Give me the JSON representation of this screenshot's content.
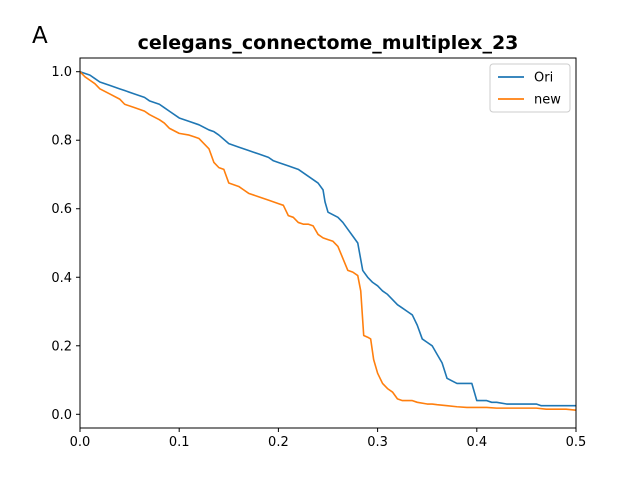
{
  "panel_label": "A",
  "chart_data": {
    "type": "line",
    "title": "celegans_connectome_multiplex_23",
    "xlabel": "",
    "ylabel": "",
    "xlim": [
      0,
      0.5
    ],
    "ylim": [
      -0.04,
      1.04
    ],
    "x_ticks": [
      0,
      0.1,
      0.2,
      0.3,
      0.4,
      0.5
    ],
    "x_tick_labels": [
      "0.0",
      "0.1",
      "0.2",
      "0.3",
      "0.4",
      "0.5"
    ],
    "y_ticks": [
      0,
      0.2,
      0.4,
      0.6,
      0.8,
      1.0
    ],
    "y_tick_labels": [
      "0.0",
      "0.2",
      "0.4",
      "0.6",
      "0.8",
      "1.0"
    ],
    "grid": false,
    "legend": {
      "placement": "top-right"
    },
    "series": [
      {
        "name": "Ori",
        "color": "#1f77b4",
        "x": [
          0,
          0.01,
          0.015,
          0.02,
          0.03,
          0.04,
          0.045,
          0.055,
          0.065,
          0.07,
          0.08,
          0.085,
          0.09,
          0.1,
          0.11,
          0.12,
          0.13,
          0.135,
          0.14,
          0.15,
          0.16,
          0.17,
          0.175,
          0.18,
          0.19,
          0.195,
          0.2,
          0.21,
          0.215,
          0.22,
          0.23,
          0.24,
          0.245,
          0.247,
          0.25,
          0.26,
          0.265,
          0.27,
          0.275,
          0.28,
          0.285,
          0.29,
          0.295,
          0.3,
          0.305,
          0.31,
          0.315,
          0.32,
          0.325,
          0.33,
          0.335,
          0.34,
          0.345,
          0.35,
          0.355,
          0.36,
          0.365,
          0.37,
          0.38,
          0.39,
          0.395,
          0.4,
          0.41,
          0.415,
          0.42,
          0.43,
          0.44,
          0.45,
          0.46,
          0.465,
          0.47,
          0.48,
          0.49,
          0.5
        ],
        "y": [
          1.0,
          0.99,
          0.98,
          0.97,
          0.96,
          0.95,
          0.945,
          0.935,
          0.925,
          0.915,
          0.905,
          0.895,
          0.885,
          0.865,
          0.855,
          0.845,
          0.83,
          0.825,
          0.815,
          0.79,
          0.78,
          0.77,
          0.765,
          0.76,
          0.75,
          0.74,
          0.735,
          0.725,
          0.72,
          0.715,
          0.695,
          0.675,
          0.655,
          0.62,
          0.59,
          0.575,
          0.56,
          0.54,
          0.52,
          0.5,
          0.42,
          0.4,
          0.385,
          0.375,
          0.36,
          0.35,
          0.335,
          0.32,
          0.31,
          0.3,
          0.29,
          0.26,
          0.22,
          0.21,
          0.2,
          0.175,
          0.15,
          0.105,
          0.09,
          0.09,
          0.09,
          0.04,
          0.04,
          0.035,
          0.035,
          0.03,
          0.03,
          0.03,
          0.03,
          0.025,
          0.025,
          0.025,
          0.025,
          0.025
        ]
      },
      {
        "name": "new",
        "color": "#ff7f0e",
        "x": [
          0,
          0.005,
          0.01,
          0.015,
          0.02,
          0.03,
          0.04,
          0.045,
          0.055,
          0.06,
          0.065,
          0.07,
          0.08,
          0.085,
          0.09,
          0.1,
          0.11,
          0.115,
          0.12,
          0.125,
          0.13,
          0.135,
          0.14,
          0.145,
          0.15,
          0.16,
          0.165,
          0.17,
          0.18,
          0.19,
          0.2,
          0.205,
          0.21,
          0.215,
          0.22,
          0.225,
          0.23,
          0.235,
          0.24,
          0.245,
          0.25,
          0.255,
          0.26,
          0.265,
          0.27,
          0.275,
          0.28,
          0.283,
          0.286,
          0.29,
          0.293,
          0.296,
          0.3,
          0.305,
          0.31,
          0.315,
          0.32,
          0.325,
          0.33,
          0.335,
          0.34,
          0.35,
          0.355,
          0.36,
          0.37,
          0.38,
          0.39,
          0.4,
          0.41,
          0.42,
          0.43,
          0.44,
          0.45,
          0.46,
          0.47,
          0.48,
          0.49,
          0.5
        ],
        "y": [
          1.0,
          0.985,
          0.975,
          0.965,
          0.95,
          0.935,
          0.92,
          0.905,
          0.895,
          0.89,
          0.885,
          0.875,
          0.86,
          0.85,
          0.835,
          0.82,
          0.815,
          0.81,
          0.805,
          0.79,
          0.775,
          0.735,
          0.72,
          0.715,
          0.675,
          0.665,
          0.655,
          0.645,
          0.635,
          0.625,
          0.615,
          0.61,
          0.58,
          0.575,
          0.56,
          0.555,
          0.555,
          0.55,
          0.525,
          0.515,
          0.51,
          0.505,
          0.49,
          0.455,
          0.42,
          0.415,
          0.405,
          0.36,
          0.23,
          0.225,
          0.22,
          0.16,
          0.12,
          0.09,
          0.075,
          0.065,
          0.045,
          0.04,
          0.04,
          0.04,
          0.035,
          0.03,
          0.03,
          0.028,
          0.025,
          0.022,
          0.02,
          0.02,
          0.02,
          0.018,
          0.018,
          0.018,
          0.018,
          0.018,
          0.015,
          0.015,
          0.015,
          0.012
        ]
      }
    ]
  }
}
